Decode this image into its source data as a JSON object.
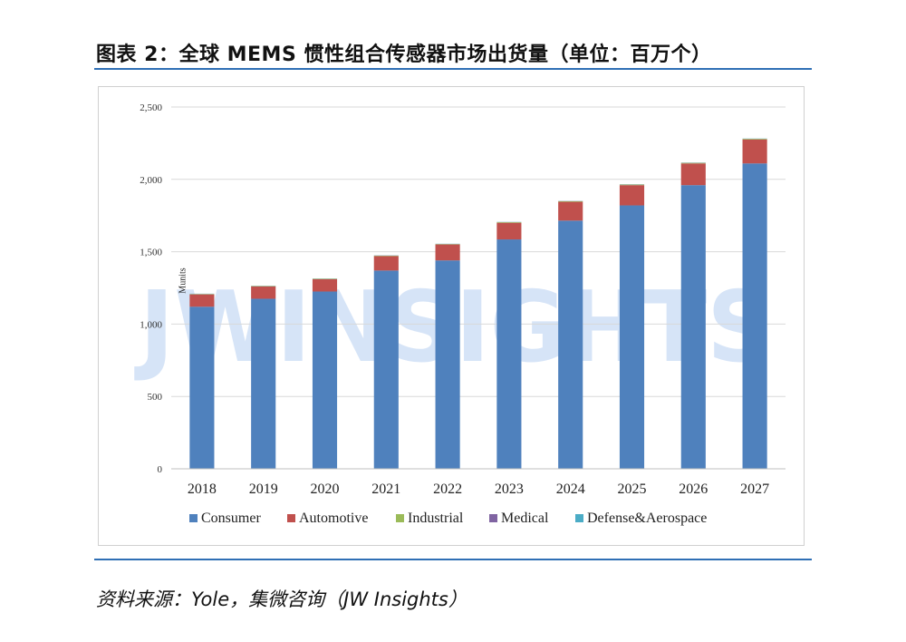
{
  "figure_title": "图表 2：全球 MEMS 惯性组合传感器市场出货量（单位：百万个）",
  "source": "资料来源：Yole，集微咨询（JW Insights）",
  "watermark": "JWINSIGHTS",
  "colors": {
    "rule": "#2f6fb5",
    "grid": "#d9d9d9",
    "watermark": "#c9dcf5"
  },
  "chart_data": {
    "type": "bar",
    "stacked": true,
    "categories": [
      "2018",
      "2019",
      "2020",
      "2021",
      "2022",
      "2023",
      "2024",
      "2025",
      "2026",
      "2027"
    ],
    "ylabel": "Munits",
    "ylim": [
      0,
      2500
    ],
    "yticks": [
      0,
      500,
      1000,
      1500,
      2000,
      2500
    ],
    "ytick_labels": [
      "0",
      "500",
      "1,000",
      "1,500",
      "2,000",
      "2,500"
    ],
    "grid": true,
    "legend_position": "bottom",
    "series": [
      {
        "name": "Consumer",
        "color": "#4f81bd",
        "values": [
          1120,
          1175,
          1225,
          1370,
          1440,
          1585,
          1715,
          1820,
          1960,
          2110
        ]
      },
      {
        "name": "Automotive",
        "color": "#c0504d",
        "values": [
          85,
          85,
          85,
          100,
          110,
          115,
          130,
          140,
          150,
          165
        ]
      },
      {
        "name": "Industrial",
        "color": "#9bbb59",
        "values": [
          3,
          3,
          3,
          3,
          3,
          4,
          4,
          4,
          4,
          5
        ]
      },
      {
        "name": "Medical",
        "color": "#8064a2",
        "values": [
          1,
          1,
          1,
          1,
          1,
          1,
          1,
          1,
          1,
          1
        ]
      },
      {
        "name": "Defense&Aerospace",
        "color": "#4bacc6",
        "values": [
          1,
          1,
          1,
          1,
          1,
          1,
          1,
          1,
          1,
          1
        ]
      }
    ]
  }
}
